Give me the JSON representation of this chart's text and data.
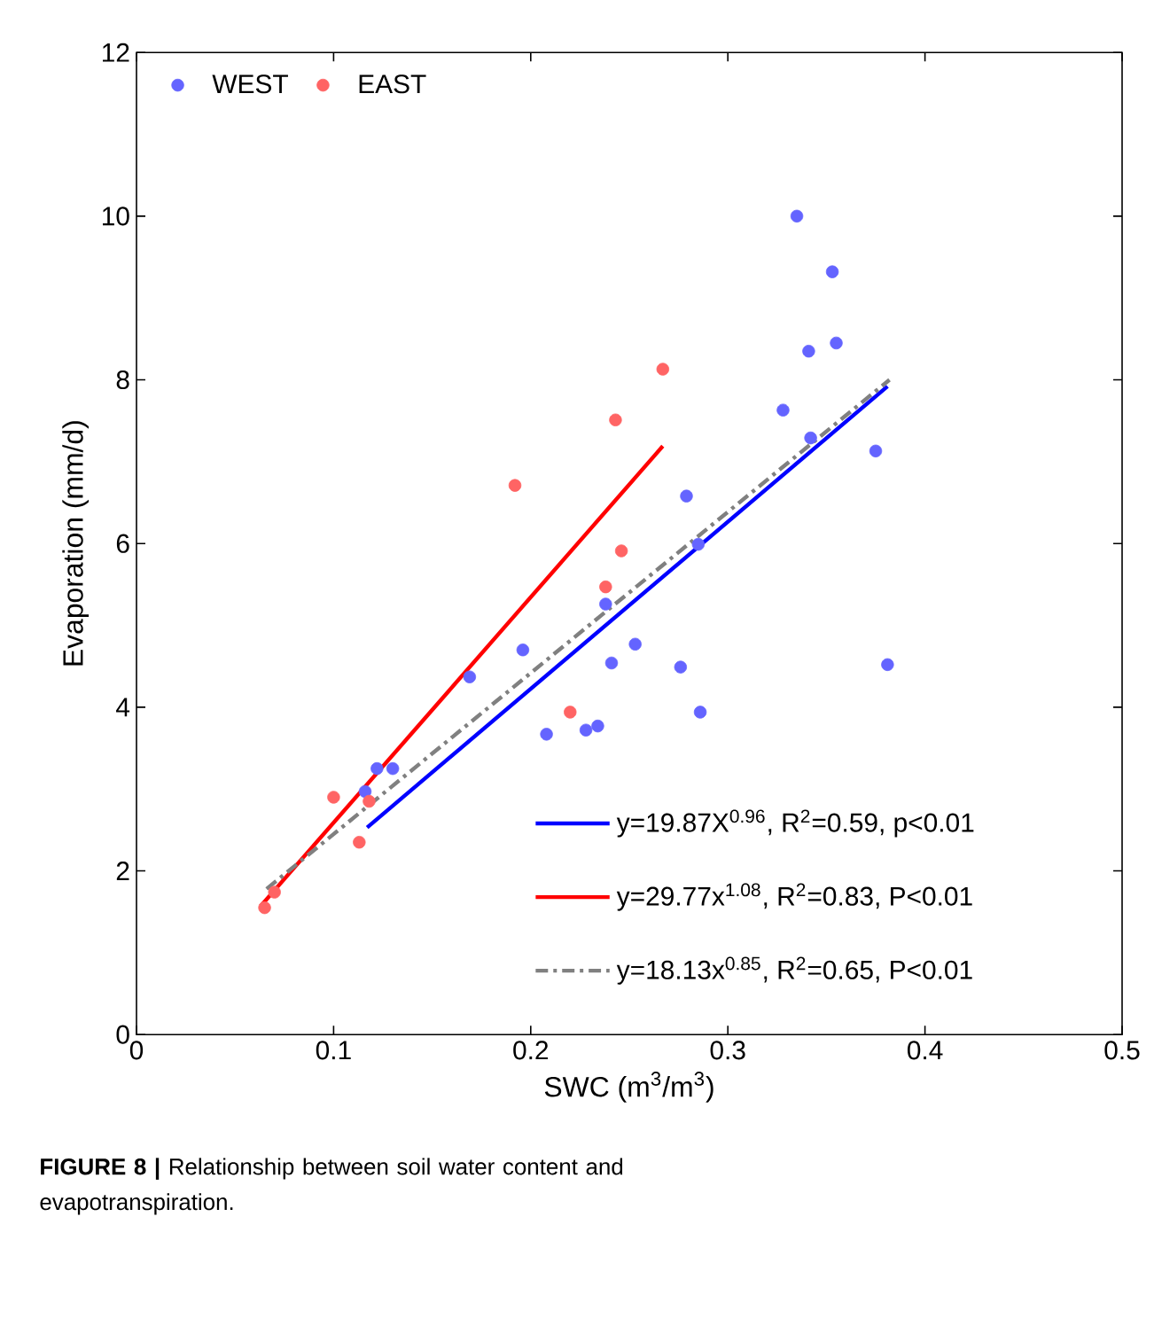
{
  "chart_data": {
    "type": "scatter",
    "xlabel": "SWC (m$^{3}$/m$^{3}$)",
    "ylabel": "Evaporation (mm/d)",
    "xlim": [
      0,
      0.5
    ],
    "xticks": [
      0,
      0.1,
      0.2,
      0.3,
      0.4,
      0.5
    ],
    "ylim": [
      0,
      12
    ],
    "yticks": [
      0,
      2,
      4,
      6,
      8,
      10,
      12
    ],
    "grid": false,
    "legend": "top left",
    "marker": "circle",
    "annotations": [
      "**FIGURE 8 |** Relationship between soil water content and evapotranspiration."
    ],
    "series": [
      {
        "name": "WEST",
        "color": "#6464ff",
        "x": [
          0.335,
          0.353,
          0.341,
          0.355,
          0.328,
          0.342,
          0.375,
          0.279,
          0.285,
          0.238,
          0.196,
          0.253,
          0.169,
          0.241,
          0.276,
          0.381,
          0.286,
          0.208,
          0.228,
          0.234,
          0.122,
          0.13,
          0.116
        ],
        "values": [
          10.0,
          9.32,
          8.35,
          8.45,
          7.63,
          7.29,
          7.13,
          6.58,
          5.99,
          5.26,
          4.7,
          4.77,
          4.37,
          4.54,
          4.49,
          4.52,
          3.94,
          3.67,
          3.72,
          3.77,
          3.25,
          3.25,
          2.97
        ]
      },
      {
        "name": "EAST",
        "color": "#ff6464",
        "x": [
          0.267,
          0.243,
          0.192,
          0.246,
          0.238,
          0.22,
          0.1,
          0.118,
          0.113,
          0.065,
          0.07
        ],
        "values": [
          8.13,
          7.51,
          6.71,
          5.91,
          5.47,
          3.94,
          2.9,
          2.85,
          2.35,
          1.55,
          1.74
        ]
      },
      {
        "type": "line",
        "name": "y=19.87X$^{0.96}$, R$^{2}$=0.59, p<0.01",
        "color": "#0000ff",
        "line_style": "solid",
        "marker": "none",
        "x": [
          0.117,
          0.381
        ],
        "values": [
          2.53,
          7.92
        ]
      },
      {
        "type": "line",
        "name": "y=29.77x$^{1.08}$, R$^{2}$=0.83, P<0.01",
        "color": "#ff0000",
        "line_style": "solid",
        "marker": "none",
        "x": [
          0.063,
          0.267
        ],
        "values": [
          1.57,
          7.19
        ]
      },
      {
        "type": "line",
        "name": "y=18.13x$^{0.85}$, R$^{2}$=0.65, P<0.01",
        "color": "#808080",
        "line_style": "dashed",
        "marker": "none",
        "x": [
          0.066,
          0.382
        ],
        "values": [
          1.78,
          8.0
        ]
      }
    ]
  }
}
